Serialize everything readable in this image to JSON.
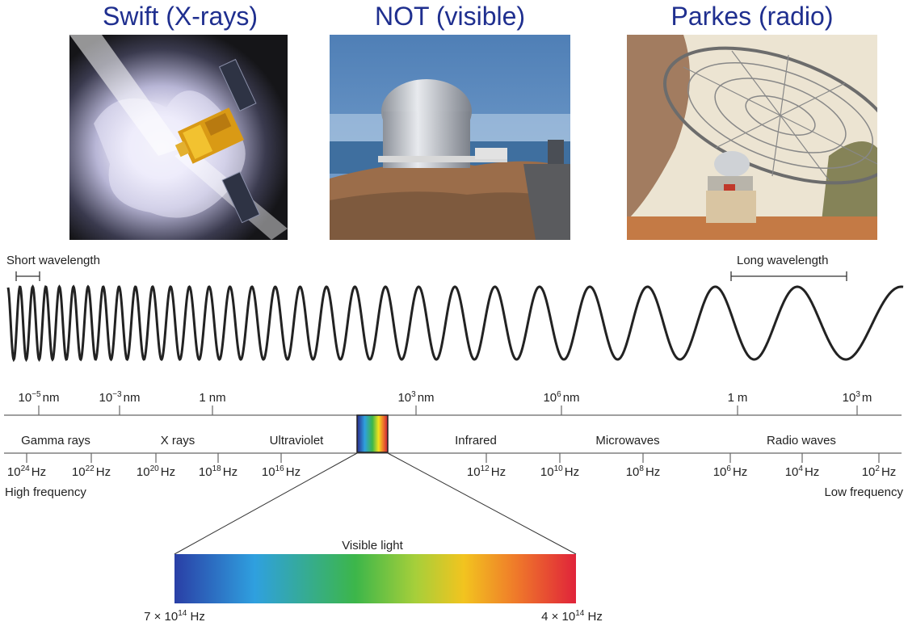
{
  "titles": {
    "swift": "Swift (X-rays)",
    "not": "NOT (visible)",
    "parkes": "Parkes (radio)"
  },
  "photos": {
    "swift": "Swift satellite illustration",
    "not": "Nordic Optical Telescope dome",
    "parkes": "Parkes radio dish"
  },
  "wave": {
    "short_label": "Short wavelength",
    "long_label": "Long wavelength"
  },
  "wavelength_ticks": [
    {
      "base": "10",
      "exp": "−5",
      "unit": "nm"
    },
    {
      "base": "10",
      "exp": "−3",
      "unit": "nm"
    },
    {
      "base": "1",
      "exp": "",
      "unit": "nm"
    },
    {
      "base": "10",
      "exp": "3",
      "unit": "nm"
    },
    {
      "base": "10",
      "exp": "6",
      "unit": "nm"
    },
    {
      "base": "1",
      "exp": "",
      "unit": "m"
    },
    {
      "base": "10",
      "exp": "3",
      "unit": "m"
    }
  ],
  "bands": [
    "Gamma rays",
    "X rays",
    "Ultraviolet",
    "Infrared",
    "Microwaves",
    "Radio waves"
  ],
  "frequency_ticks": [
    {
      "base": "10",
      "exp": "24",
      "unit": "Hz"
    },
    {
      "base": "10",
      "exp": "22",
      "unit": "Hz"
    },
    {
      "base": "10",
      "exp": "20",
      "unit": "Hz"
    },
    {
      "base": "10",
      "exp": "18",
      "unit": "Hz"
    },
    {
      "base": "10",
      "exp": "16",
      "unit": "Hz"
    },
    {
      "base": "10",
      "exp": "12",
      "unit": "Hz"
    },
    {
      "base": "10",
      "exp": "10",
      "unit": "Hz"
    },
    {
      "base": "10",
      "exp": "8",
      "unit": "Hz"
    },
    {
      "base": "10",
      "exp": "6",
      "unit": "Hz"
    },
    {
      "base": "10",
      "exp": "4",
      "unit": "Hz"
    },
    {
      "base": "10",
      "exp": "2",
      "unit": "Hz"
    }
  ],
  "freq_labels": {
    "high": "High frequency",
    "low": "Low frequency"
  },
  "visible": {
    "label": "Visible light",
    "left": {
      "pre": "7 × 10",
      "exp": "14",
      "unit": " Hz"
    },
    "right": {
      "pre": "4 × 10",
      "exp": "14",
      "unit": " Hz"
    }
  },
  "colors": {
    "title": "#1f2f8f",
    "line": "#666666",
    "wave": "#222222"
  }
}
